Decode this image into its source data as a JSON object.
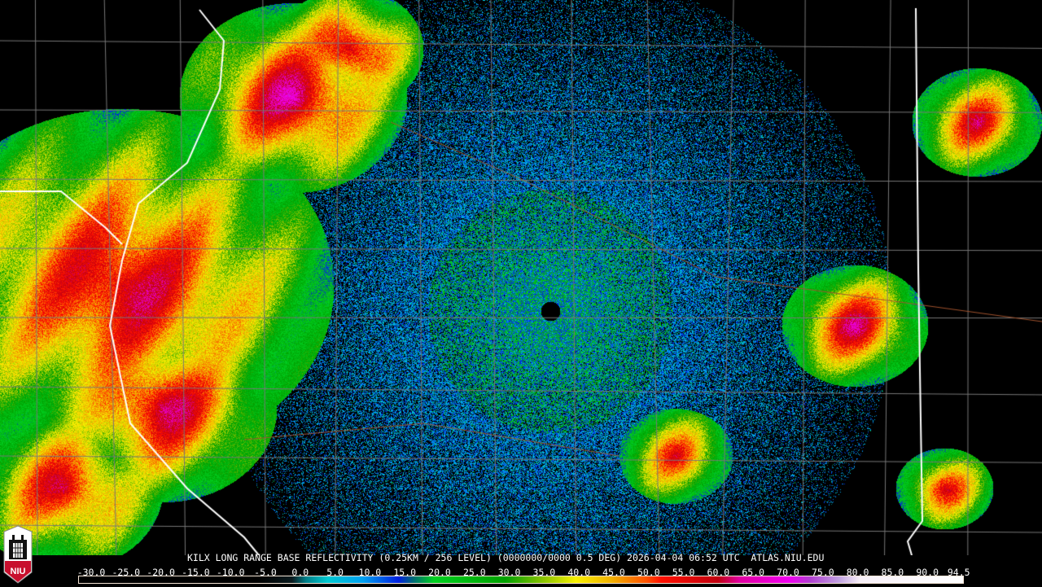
{
  "product_title": "KILX LONG RANGE BASE REFLECTIVITY (0.25KM / 256 LEVEL) (0000000/0000 0.5 DEG) 2026-04-04 06:52 UTC  ATLAS.NIU.EDU",
  "logo": {
    "text": "NIU",
    "icon": "niu-tower-logo-icon"
  },
  "colorbar": {
    "unit_range": [
      -30.0,
      94.5
    ],
    "tick_labels": [
      "-30.0",
      "-25.0",
      "-20.0",
      "-15.0",
      "-10.0",
      "-5.0",
      "0.0",
      "5.0",
      "10.0",
      "15.0",
      "20.0",
      "25.0",
      "30.0",
      "35.0",
      "40.0",
      "45.0",
      "50.0",
      "55.0",
      "60.0",
      "65.0",
      "70.0",
      "75.0",
      "80.0",
      "85.0",
      "90.0",
      "94.5"
    ],
    "color_stops": [
      [
        -30,
        "#000000"
      ],
      [
        -5,
        "#000000"
      ],
      [
        0,
        "#0a1a1e"
      ],
      [
        2,
        "#00808a"
      ],
      [
        5,
        "#00c8d0"
      ],
      [
        10,
        "#00a0f0"
      ],
      [
        15,
        "#0020e0"
      ],
      [
        17,
        "#006878"
      ],
      [
        20,
        "#00d020"
      ],
      [
        30,
        "#00a000"
      ],
      [
        35,
        "#80c000"
      ],
      [
        40,
        "#f8f000"
      ],
      [
        45,
        "#f0b000"
      ],
      [
        50,
        "#ff5000"
      ],
      [
        52,
        "#ff1000"
      ],
      [
        60,
        "#c00010"
      ],
      [
        63,
        "#e000a0"
      ],
      [
        70,
        "#f000f0"
      ],
      [
        73,
        "#b040d0"
      ],
      [
        77,
        "#c0a0e0"
      ],
      [
        80,
        "#f8f0f8"
      ],
      [
        94.5,
        "#ffffff"
      ]
    ]
  }
}
